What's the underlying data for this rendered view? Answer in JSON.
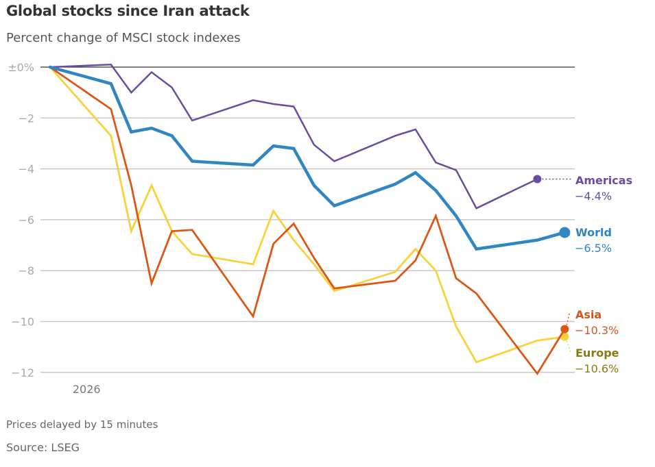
{
  "header": {
    "title": "Global stocks since Iran attack",
    "subtitle": "Percent change of MSCI stock indexes"
  },
  "footer": {
    "delay_note": "Prices delayed by 15 minutes",
    "source": "Source: LSEG"
  },
  "chart_data": {
    "type": "line",
    "title": "Global stocks since Iran attack",
    "subtitle": "Percent change of MSCI stock indexes",
    "xlabel": "",
    "ylabel": "Percent change",
    "ylim": [
      -12.5,
      0.3
    ],
    "yticks": [
      0,
      -2,
      -4,
      -6,
      -8,
      -10,
      -12
    ],
    "ytick_labels": [
      "±0%",
      "−2",
      "−4",
      "−6",
      "−8",
      "−10",
      "−12"
    ],
    "x_tick_labels": [
      "2026"
    ],
    "x_tick_positions": [
      2
    ],
    "grid": true,
    "x": [
      0,
      3,
      4,
      5,
      6,
      7,
      10,
      11,
      12,
      13,
      14,
      17,
      18,
      19,
      20,
      21,
      24,
      25.35
    ],
    "series": [
      {
        "name": "Americas",
        "color": "#6a4c9c",
        "label_color": "#6a4c9c",
        "end_label": "−4.4%",
        "values": [
          0,
          0.1,
          -1.0,
          -0.2,
          -0.8,
          -2.1,
          -1.3,
          -1.45,
          -1.55,
          -3.05,
          -3.7,
          -2.7,
          -2.45,
          -3.75,
          -4.05,
          -5.55,
          -4.4,
          null
        ]
      },
      {
        "name": "World",
        "color": "#2f86c1",
        "label_color": "#2f86c1",
        "end_label": "−6.5%",
        "values": [
          0,
          -0.65,
          -2.55,
          -2.4,
          -2.7,
          -3.7,
          -3.85,
          -3.1,
          -3.2,
          -4.65,
          -5.45,
          -4.6,
          -4.15,
          -4.85,
          -5.85,
          -7.15,
          -6.8,
          -6.5
        ]
      },
      {
        "name": "Asia",
        "color": "#dc5614",
        "label_color": "#d4561a",
        "end_label": "−10.3%",
        "values": [
          0,
          -1.65,
          -4.65,
          -8.5,
          -6.45,
          -6.4,
          -9.8,
          -6.95,
          -6.15,
          -7.5,
          -8.7,
          -8.4,
          -7.6,
          -5.85,
          -8.3,
          -8.9,
          -12.05,
          -10.3
        ]
      },
      {
        "name": "Europe",
        "color": "#f8d23a",
        "label_color": "#8a7a12",
        "end_label": "−10.6%",
        "values": [
          0,
          -2.7,
          -6.45,
          -4.65,
          -6.45,
          -7.35,
          -7.75,
          -5.65,
          -6.8,
          -7.75,
          -8.8,
          -8.05,
          -7.15,
          -8.0,
          -10.2,
          -11.6,
          -10.75,
          -10.6
        ]
      }
    ],
    "legend": "right-end-labels"
  }
}
